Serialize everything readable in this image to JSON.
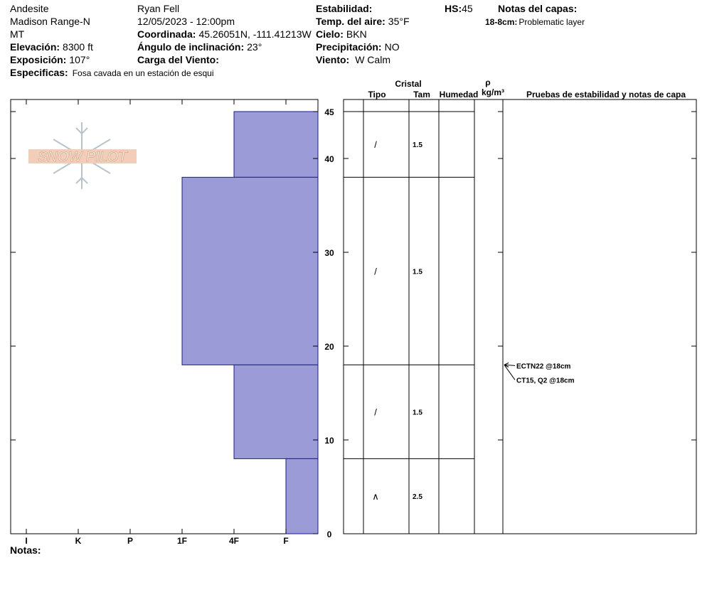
{
  "header": {
    "location": "Andesite",
    "range": "Madison Range-N",
    "state": "MT",
    "elevation": {
      "label": "Elevación:",
      "value": "8300 ft"
    },
    "aspect": {
      "label": "Exposición:",
      "value": "107°"
    },
    "specifics": {
      "label": "Especificas:",
      "value": "Fosa cavada en un estación de esqui"
    },
    "observer": "Ryan Fell",
    "datetime": "12/05/2023 - 12:00pm",
    "coordinates": {
      "label": "Coordinada:",
      "value": "45.26051N, -111.41213W"
    },
    "slope": {
      "label": "Ángulo de inclinación:",
      "value": "23°"
    },
    "wind_loading": {
      "label": "Carga del Viento:"
    },
    "stability": {
      "label": "Estabilidad:"
    },
    "air_temp": {
      "label": "Temp. del aire:",
      "value": "35°F"
    },
    "sky": {
      "label": "Cielo:",
      "value": "BKN"
    },
    "precipitation": {
      "label": "Precipitación:",
      "value": "NO"
    },
    "wind": {
      "label": "Viento:",
      "value": "W Calm"
    },
    "hs": {
      "label": "HS:",
      "value": 45
    },
    "layer_notes": {
      "title": "Notas del capas:",
      "items": [
        {
          "range": "18-8cm:",
          "text": "Problematic layer"
        }
      ]
    }
  },
  "logo": "SNOW PILOT",
  "footer": {
    "notes_label": "Notas:"
  },
  "columns": {
    "crystal": "Cristal",
    "type": "Tipo",
    "size": "Tam",
    "moisture": "Humedad",
    "density": "ρ",
    "density_unit": "kg/m³",
    "tests": "Pruebas de estabilidad y notas de capa"
  },
  "chart_data": {
    "type": "bar",
    "hardness_categories": [
      "I",
      "K",
      "P",
      "1F",
      "4F",
      "F"
    ],
    "layers": [
      {
        "top": 45,
        "bottom": 38,
        "hardness": "4F",
        "grain": "/",
        "size": 1.5
      },
      {
        "top": 38,
        "bottom": 18,
        "hardness": "1F",
        "grain": "/",
        "size": 1.5
      },
      {
        "top": 18,
        "bottom": 8,
        "hardness": "4F",
        "grain": "/",
        "size": 1.5
      },
      {
        "top": 8,
        "bottom": 0,
        "hardness": "F",
        "grain": "∧",
        "size": 2.5
      }
    ],
    "color": "#9b9bd7",
    "ylim": [
      0,
      45
    ],
    "yticks": [
      0,
      10,
      20,
      30,
      40,
      45
    ],
    "tests": [
      {
        "text": "ECTN22 @18cm",
        "depth": 18
      },
      {
        "text": "CT15, Q2 @18cm",
        "depth": 18
      }
    ]
  }
}
